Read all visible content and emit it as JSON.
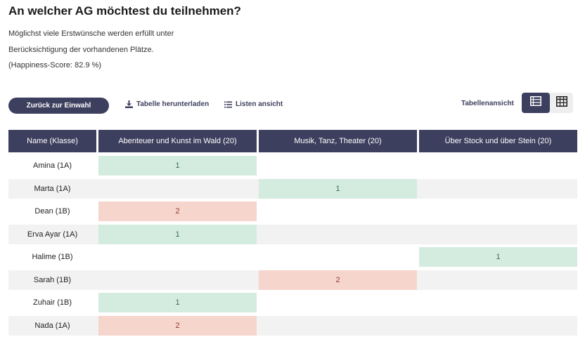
{
  "title": "An welcher AG möchtest du teilnehmen?",
  "description": [
    "Möglichst viele Erstwünsche werden erfüllt unter",
    "Berücksichtigung der vorhandenen Plätze.",
    "(Happiness-Score: 82.9 %)"
  ],
  "toolbar": {
    "back_label": "Zurück zur Einwahl",
    "download_label": "Tabelle herunterladen",
    "list_view_label": "Listen ansicht",
    "table_view_label": "Tabellenansicht"
  },
  "icons": {
    "download": "download-icon",
    "list": "list-icon",
    "list_view_toggle": "list-view-icon",
    "table_view_toggle": "table-grid-icon"
  },
  "colors": {
    "header_bg": "#3d3f5e",
    "choice_1": "#d4ebdf",
    "choice_2": "#f6d6cc",
    "row_shade": "#f2f2f2"
  },
  "table": {
    "headers": [
      "Name (Klasse)",
      "Abenteuer und Kunst im Wald (20)",
      "Musik, Tanz, Theater (20)",
      "Über Stock und über Stein (20)"
    ],
    "rows": [
      {
        "name": "Amina  (1A)",
        "cells": [
          "1",
          "",
          ""
        ]
      },
      {
        "name": "Marta (1A)",
        "cells": [
          "",
          "1",
          ""
        ]
      },
      {
        "name": "Dean (1B)",
        "cells": [
          "2",
          "",
          ""
        ]
      },
      {
        "name": "Erva Ayar (1A)",
        "cells": [
          "1",
          "",
          ""
        ]
      },
      {
        "name": "Halime (1B)",
        "cells": [
          "",
          "",
          "1"
        ]
      },
      {
        "name": "Sarah (1B)",
        "cells": [
          "",
          "2",
          ""
        ]
      },
      {
        "name": "Zuhair (1B)",
        "cells": [
          "1",
          "",
          ""
        ]
      },
      {
        "name": "Nada (1A)",
        "cells": [
          "2",
          "",
          ""
        ]
      }
    ]
  }
}
